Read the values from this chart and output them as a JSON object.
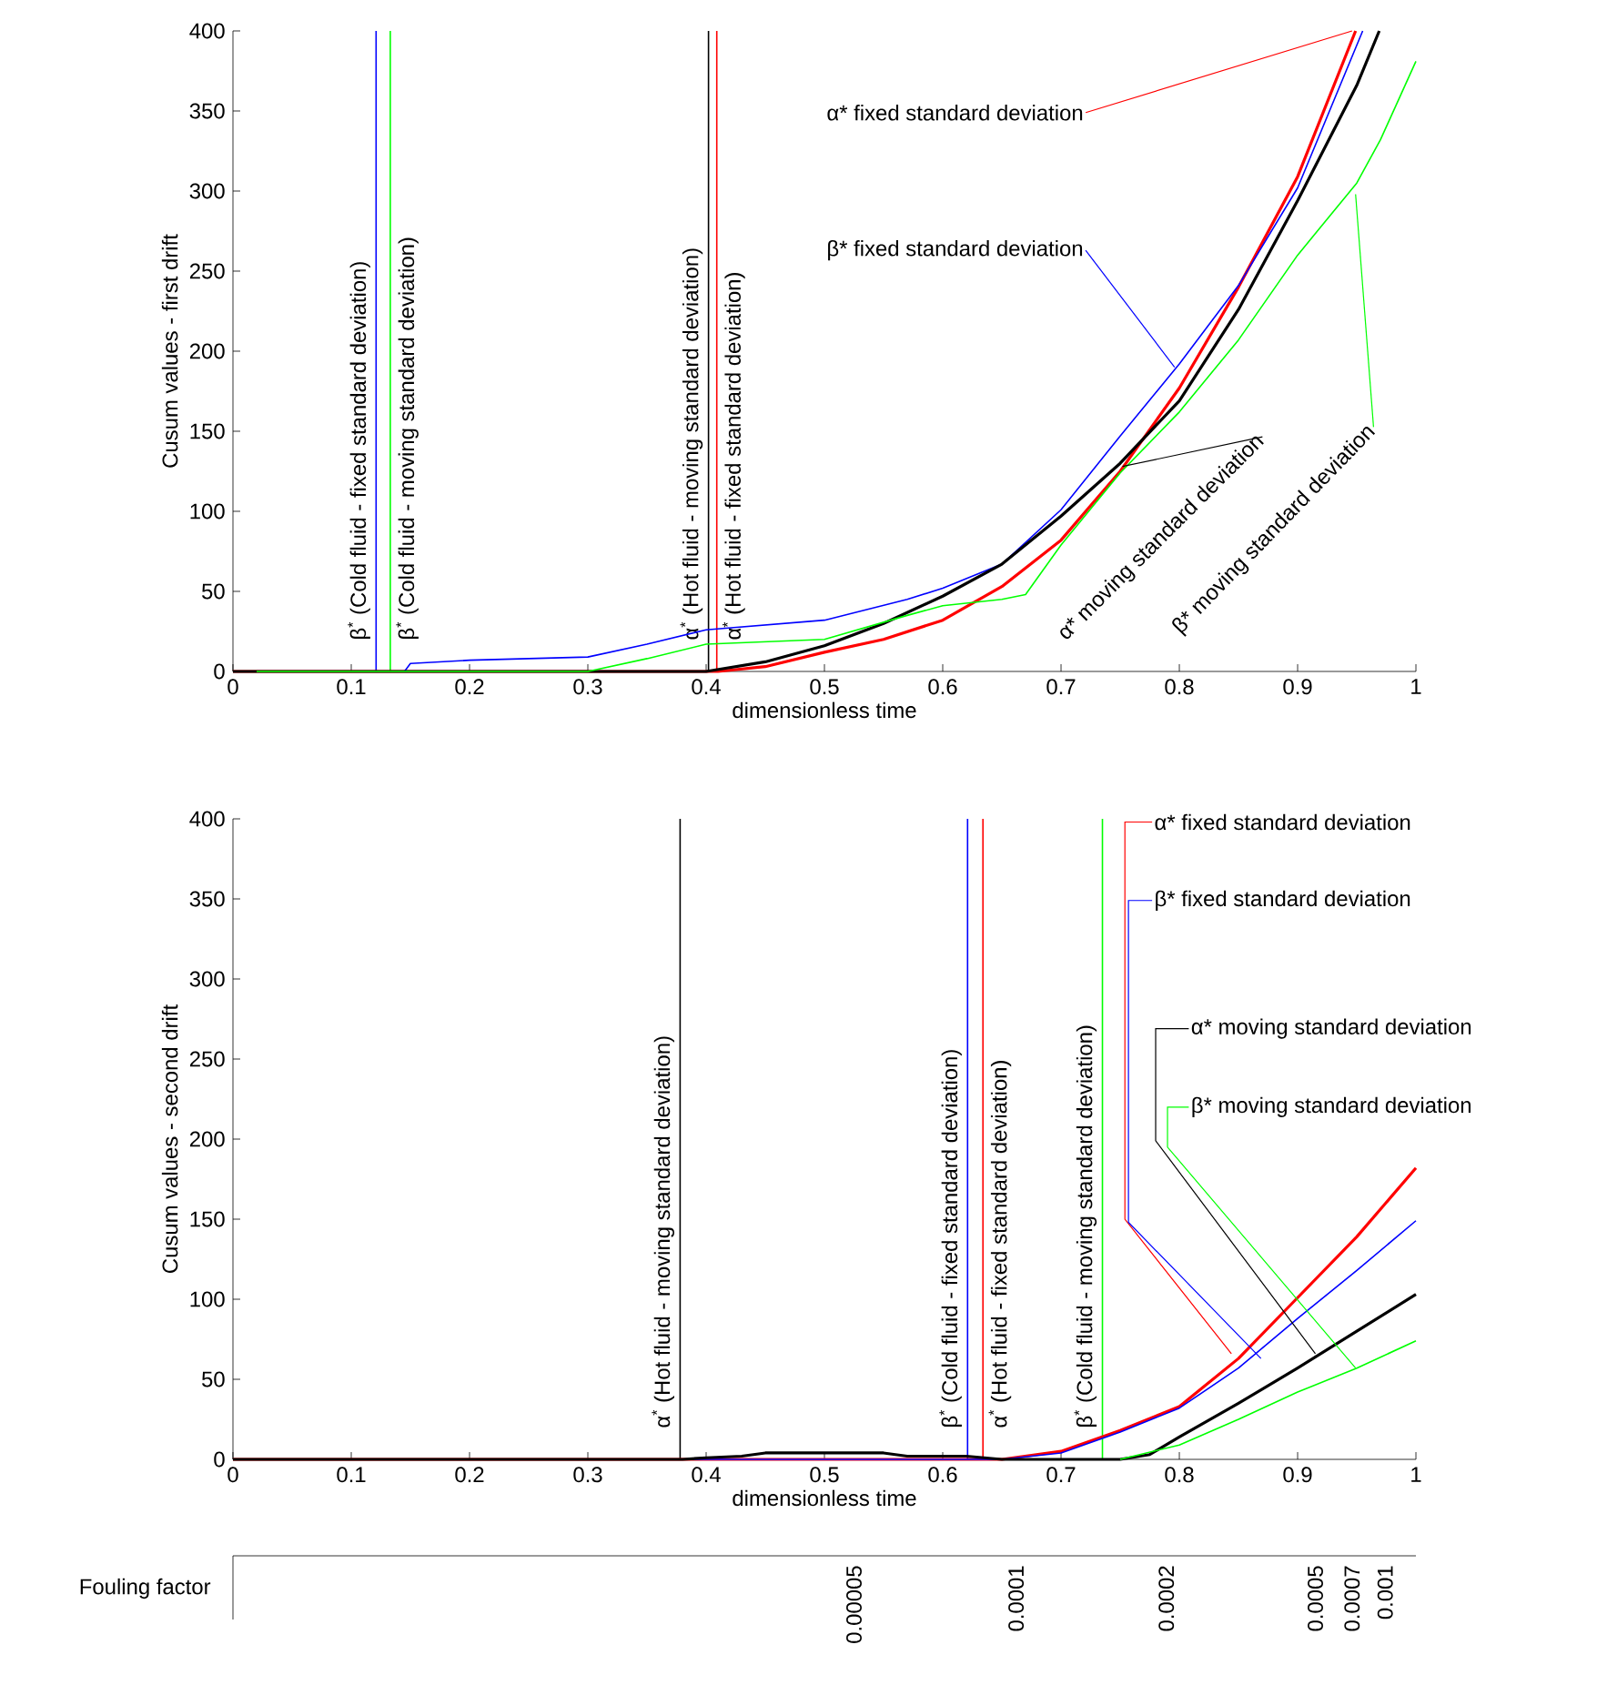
{
  "chart_data": [
    {
      "type": "line",
      "xlabel": "dimensionless time",
      "ylabel": "Cusum values - first drift",
      "xlim": [
        0,
        1
      ],
      "ylim": [
        0,
        400
      ],
      "xticks": [
        0,
        0.1,
        0.2,
        0.3,
        0.4,
        0.5,
        0.6,
        0.7,
        0.8,
        0.9,
        1
      ],
      "yticks": [
        0,
        50,
        100,
        150,
        200,
        250,
        300,
        350,
        400
      ],
      "series": [
        {
          "color": "#ff0000",
          "x": [
            0,
            0.41,
            0.45,
            0.5,
            0.55,
            0.6,
            0.65,
            0.7,
            0.75,
            0.8,
            0.85,
            0.9,
            0.949
          ],
          "values": [
            0,
            0,
            3,
            12,
            20,
            32,
            53,
            82,
            125,
            177,
            240,
            309,
            400
          ]
        },
        {
          "color": "#0000ff",
          "x": [
            0,
            0.145,
            0.15,
            0.2,
            0.3,
            0.35,
            0.4,
            0.5,
            0.57,
            0.6,
            0.65,
            0.7,
            0.75,
            0.8,
            0.85,
            0.9,
            0.955
          ],
          "values": [
            0,
            0,
            5,
            7,
            9,
            17,
            26,
            32,
            45,
            52,
            67,
            101,
            147,
            192,
            241,
            302,
            400
          ]
        },
        {
          "color": "#000000",
          "x": [
            0,
            0.4,
            0.45,
            0.5,
            0.55,
            0.6,
            0.65,
            0.7,
            0.75,
            0.8,
            0.85,
            0.9,
            0.95,
            0.969
          ],
          "values": [
            0,
            0,
            6,
            16,
            30,
            47,
            67,
            97,
            130,
            169,
            226,
            294,
            366,
            400
          ]
        },
        {
          "color": "#00ff00",
          "x": [
            0.02,
            0.3,
            0.35,
            0.4,
            0.5,
            0.57,
            0.6,
            0.65,
            0.67,
            0.7,
            0.75,
            0.8,
            0.85,
            0.9,
            0.95,
            0.97,
            1
          ],
          "values": [
            0,
            0,
            8,
            17,
            20,
            35,
            41,
            45,
            48,
            79,
            124,
            162,
            207,
            260,
            305,
            332,
            381
          ]
        }
      ],
      "ref_lines": [
        {
          "axis": "x",
          "value": 0.121,
          "label": "β$^{*}$ (Cold fluid - fixed standard deviation)",
          "color": "#0000ff"
        },
        {
          "axis": "x",
          "value": 0.133,
          "label": "β$^{*}$ (Cold fluid - moving standard deviation)",
          "color": "#00ff00"
        },
        {
          "axis": "x",
          "value": 0.402,
          "label": "α$^{*}$ (Hot fluid - moving standard deviation)",
          "color": "#000000"
        },
        {
          "axis": "x",
          "value": 0.409,
          "label": "α$^{*}$ (Hot fluid - fixed standard deviation)",
          "color": "#ff0000"
        }
      ],
      "annotations": [
        {
          "text": "α* fixed standard deviation",
          "x": 0.946,
          "y": 400
        },
        {
          "text": "β* fixed standard deviation",
          "x": 0.796,
          "y": 190
        },
        {
          "text": "α* moving standard deviation",
          "x": 0.752,
          "y": 128
        },
        {
          "text": "β* moving standard deviation",
          "x": 0.949,
          "y": 298
        }
      ]
    },
    {
      "type": "line",
      "xlabel": "dimensionless time",
      "ylabel": "Cusum values - second drift",
      "xlim": [
        0,
        1
      ],
      "ylim": [
        0,
        400
      ],
      "xticks": [
        0,
        0.1,
        0.2,
        0.3,
        0.4,
        0.5,
        0.6,
        0.7,
        0.8,
        0.9,
        1
      ],
      "yticks": [
        0,
        50,
        100,
        150,
        200,
        250,
        300,
        350,
        400
      ],
      "series": [
        {
          "color": "#ff0000",
          "x": [
            0,
            0.65,
            0.7,
            0.75,
            0.8,
            0.85,
            0.9,
            0.95,
            1
          ],
          "values": [
            0,
            0,
            5,
            18,
            33,
            63,
            101,
            139,
            182
          ]
        },
        {
          "color": "#0000ff",
          "x": [
            0,
            0.65,
            0.7,
            0.75,
            0.8,
            0.85,
            0.9,
            0.95,
            1
          ],
          "values": [
            0,
            0,
            4,
            17,
            32,
            57,
            88,
            118,
            149
          ]
        },
        {
          "color": "#000000",
          "x": [
            0,
            0.38,
            0.4,
            0.43,
            0.45,
            0.55,
            0.57,
            0.62,
            0.65,
            0.75,
            0.775,
            0.8,
            0.85,
            0.9,
            0.95,
            1
          ],
          "values": [
            0,
            0,
            1,
            2,
            4,
            4,
            2,
            2,
            0,
            0,
            3,
            14,
            35,
            57,
            80,
            103
          ]
        },
        {
          "color": "#00ff00",
          "x": [
            0.75,
            0.8,
            0.85,
            0.9,
            0.95,
            1
          ],
          "values": [
            0,
            9,
            25,
            42,
            57,
            74
          ]
        }
      ],
      "ref_lines": [
        {
          "axis": "x",
          "value": 0.378,
          "label": "α$^{*}$ (Hot fluid - moving standard deviation)",
          "color": "#000000"
        },
        {
          "axis": "x",
          "value": 0.621,
          "label": "β$^{*}$ (Cold fluid - fixed standard deviation)",
          "color": "#0000ff"
        },
        {
          "axis": "x",
          "value": 0.634,
          "label": "α$^{*}$ (Hot fluid - fixed standard deviation)",
          "color": "#ff0000"
        },
        {
          "axis": "x",
          "value": 0.735,
          "label": "β$^{*}$ (Cold fluid - moving standard deviation)",
          "color": "#00ff00"
        }
      ],
      "annotations": [
        {
          "text": "α* fixed standard deviation",
          "x": 0.844,
          "y": 66
        },
        {
          "text": "β* fixed standard deviation",
          "x": 0.869,
          "y": 63
        },
        {
          "text": "α* moving standard deviation",
          "x": 0.915,
          "y": 66
        },
        {
          "text": "β* moving standard deviation",
          "x": 0.949,
          "y": 57
        },
        "Fouling factor",
        "0.00005",
        "0.0001",
        "0.0002",
        "0.0005",
        "0.0007",
        "0.001"
      ]
    }
  ]
}
